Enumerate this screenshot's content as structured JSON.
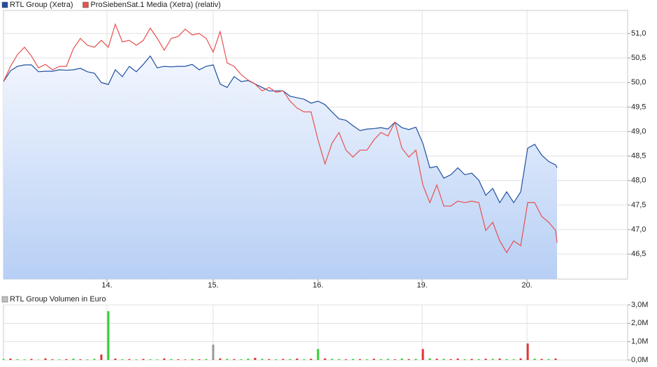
{
  "chart_data": [
    {
      "type": "line",
      "x": [
        0,
        10,
        20,
        30,
        40,
        50,
        60,
        70,
        80,
        90,
        100,
        110,
        120,
        130,
        140,
        150,
        160,
        170,
        180,
        190,
        200,
        210,
        220,
        230,
        240,
        250,
        260,
        270,
        280,
        290,
        300,
        310,
        320,
        330,
        340,
        350,
        360,
        370,
        380,
        390,
        400,
        410,
        420,
        430,
        440,
        450,
        460,
        470,
        480,
        490,
        500,
        510,
        520,
        530,
        540,
        550,
        560,
        570,
        580,
        590,
        600,
        610,
        620,
        630,
        640,
        650,
        660,
        670,
        680,
        690,
        700,
        710,
        720,
        730,
        740,
        750,
        760,
        770,
        780,
        790,
        792
      ],
      "xlim": [
        0,
        893
      ],
      "xticks": [
        {
          "value": 148,
          "label": "14."
        },
        {
          "value": 300,
          "label": "15."
        },
        {
          "value": 450,
          "label": "16."
        },
        {
          "value": 599,
          "label": "19."
        },
        {
          "value": 749,
          "label": "20."
        }
      ],
      "ylim": [
        45.99,
        51.47
      ],
      "yticks": [
        {
          "value": 46.5,
          "label": "46,5"
        },
        {
          "value": 47,
          "label": "47,0"
        },
        {
          "value": 47.5,
          "label": "47,5"
        },
        {
          "value": 48,
          "label": "48,0"
        },
        {
          "value": 48.5,
          "label": "48,5"
        },
        {
          "value": 49,
          "label": "49,0"
        },
        {
          "value": 49.5,
          "label": "49,5"
        },
        {
          "value": 50,
          "label": "50,0"
        },
        {
          "value": 50.5,
          "label": "50,5"
        },
        {
          "value": 51,
          "label": "51,0"
        }
      ],
      "grid": true,
      "series": [
        {
          "name": "RTL Group (Xetra)",
          "color": "#1f4fa0",
          "area": true,
          "values": [
            50.02,
            50.24,
            50.33,
            50.36,
            50.36,
            50.22,
            50.23,
            50.23,
            50.26,
            50.25,
            50.26,
            50.29,
            50.22,
            50.19,
            50.0,
            49.96,
            50.26,
            50.12,
            50.33,
            50.22,
            50.37,
            50.54,
            50.3,
            50.33,
            50.32,
            50.33,
            50.33,
            50.37,
            50.26,
            50.33,
            50.36,
            49.97,
            49.9,
            50.12,
            50.02,
            50.04,
            49.97,
            49.9,
            49.83,
            49.83,
            49.83,
            49.72,
            49.69,
            49.66,
            49.58,
            49.62,
            49.55,
            49.4,
            49.26,
            49.23,
            49.12,
            49.02,
            49.05,
            49.06,
            49.08,
            49.05,
            49.19,
            49.08,
            49.04,
            49.09,
            48.76,
            48.26,
            48.29,
            48.05,
            48.12,
            48.26,
            48.12,
            48.15,
            48.01,
            47.7,
            47.84,
            47.55,
            47.77,
            47.55,
            47.77,
            48.66,
            48.74,
            48.52,
            48.39,
            48.32,
            48.26
          ]
        },
        {
          "name": "ProSiebenSat.1 Media (Xetra) (relativ)",
          "color": "#e8504f",
          "area": false,
          "values": [
            50.02,
            50.33,
            50.57,
            50.72,
            50.54,
            50.3,
            50.37,
            50.26,
            50.33,
            50.33,
            50.69,
            50.9,
            50.76,
            50.72,
            50.86,
            50.72,
            51.19,
            50.83,
            50.86,
            50.76,
            50.86,
            51.11,
            50.9,
            50.66,
            50.9,
            50.94,
            51.09,
            50.97,
            51.0,
            50.9,
            50.62,
            51.04,
            50.4,
            50.33,
            50.16,
            50.05,
            49.97,
            49.83,
            49.9,
            49.8,
            49.83,
            49.62,
            49.48,
            49.4,
            49.4,
            48.83,
            48.34,
            48.76,
            48.98,
            48.62,
            48.48,
            48.62,
            48.62,
            48.83,
            48.98,
            48.91,
            49.19,
            48.66,
            48.48,
            48.62,
            47.91,
            47.55,
            47.91,
            47.48,
            47.48,
            47.58,
            47.55,
            47.58,
            47.55,
            46.98,
            47.15,
            46.77,
            46.53,
            46.77,
            46.67,
            47.55,
            47.55,
            47.27,
            47.15,
            46.98,
            46.73
          ]
        }
      ]
    },
    {
      "type": "bar",
      "x": [
        0,
        10,
        20,
        30,
        40,
        50,
        60,
        70,
        80,
        90,
        100,
        110,
        120,
        130,
        140,
        150,
        160,
        170,
        180,
        190,
        200,
        210,
        220,
        230,
        240,
        250,
        260,
        270,
        280,
        290,
        300,
        310,
        320,
        330,
        340,
        350,
        360,
        370,
        380,
        390,
        400,
        410,
        420,
        430,
        440,
        450,
        460,
        470,
        480,
        490,
        500,
        510,
        520,
        530,
        540,
        550,
        560,
        570,
        580,
        590,
        600,
        610,
        620,
        630,
        640,
        650,
        660,
        670,
        680,
        690,
        700,
        710,
        720,
        730,
        740,
        750,
        760,
        770,
        780,
        790
      ],
      "xlim": [
        0,
        893
      ],
      "ylim": [
        0,
        3000000
      ],
      "yticks": [
        {
          "value": 0,
          "label": "0,0M"
        },
        {
          "value": 1000000,
          "label": "1,0M"
        },
        {
          "value": 2000000,
          "label": "2,0M"
        },
        {
          "value": 3000000,
          "label": "3,0M"
        }
      ],
      "grid": true,
      "series": [
        {
          "name": "RTL Group Volumen in Euro",
          "color": "#c0c0c0",
          "values": [
            50000,
            80000,
            40000,
            30000,
            60000,
            20000,
            90000,
            40000,
            30000,
            50000,
            70000,
            40000,
            30000,
            60000,
            300000,
            2660000,
            80000,
            40000,
            50000,
            30000,
            60000,
            40000,
            30000,
            90000,
            50000,
            40000,
            30000,
            60000,
            40000,
            50000,
            840000,
            90000,
            60000,
            50000,
            40000,
            70000,
            120000,
            60000,
            50000,
            40000,
            60000,
            50000,
            80000,
            40000,
            70000,
            600000,
            90000,
            60000,
            50000,
            40000,
            60000,
            50000,
            40000,
            70000,
            50000,
            60000,
            40000,
            80000,
            50000,
            60000,
            600000,
            90000,
            70000,
            60000,
            50000,
            80000,
            40000,
            60000,
            50000,
            70000,
            60000,
            80000,
            50000,
            40000,
            90000,
            900000,
            70000,
            60000,
            50000,
            80000
          ],
          "colors": [
            "#33cc33",
            "#dd3333",
            "#33cc33",
            "#33cc33",
            "#dd3333",
            "#33cc33",
            "#dd3333",
            "#dd3333",
            "#33cc33",
            "#dd3333",
            "#33cc33",
            "#dd3333",
            "#33cc33",
            "#33cc33",
            "#dd3333",
            "#33cc33",
            "#dd3333",
            "#33cc33",
            "#dd3333",
            "#33cc33",
            "#dd3333",
            "#33cc33",
            "#33cc33",
            "#dd3333",
            "#33cc33",
            "#dd3333",
            "#dd3333",
            "#33cc33",
            "#dd3333",
            "#33cc33",
            "#999999",
            "#dd3333",
            "#33cc33",
            "#dd3333",
            "#33cc33",
            "#33cc33",
            "#dd3333",
            "#33cc33",
            "#dd3333",
            "#33cc33",
            "#dd3333",
            "#33cc33",
            "#dd3333",
            "#33cc33",
            "#dd3333",
            "#33cc33",
            "#dd3333",
            "#33cc33",
            "#33cc33",
            "#dd3333",
            "#33cc33",
            "#dd3333",
            "#33cc33",
            "#dd3333",
            "#33cc33",
            "#33cc33",
            "#dd3333",
            "#33cc33",
            "#dd3333",
            "#33cc33",
            "#dd3333",
            "#33cc33",
            "#dd3333",
            "#33cc33",
            "#dd3333",
            "#dd3333",
            "#33cc33",
            "#dd3333",
            "#33cc33",
            "#dd3333",
            "#33cc33",
            "#dd3333",
            "#33cc33",
            "#33cc33",
            "#dd3333",
            "#dd3333",
            "#33cc33",
            "#dd3333",
            "#33cc33",
            "#dd3333"
          ]
        }
      ]
    }
  ]
}
